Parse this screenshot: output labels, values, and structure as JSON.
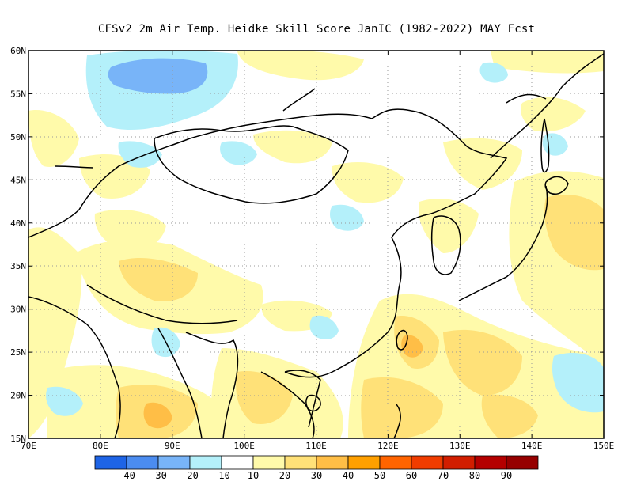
{
  "title": "CFSv2  2m Air Temp. Heidke Skill Score JanIC (1982-2022) MAY Fcst",
  "map": {
    "lon_range": [
      70,
      150
    ],
    "lat_range": [
      15,
      60
    ],
    "lon_ticks": [
      {
        "value": 70,
        "label": "70E"
      },
      {
        "value": 80,
        "label": "80E"
      },
      {
        "value": 90,
        "label": "90E"
      },
      {
        "value": 100,
        "label": "100E"
      },
      {
        "value": 110,
        "label": "110E"
      },
      {
        "value": 120,
        "label": "120E"
      },
      {
        "value": 130,
        "label": "130E"
      },
      {
        "value": 140,
        "label": "140E"
      },
      {
        "value": 150,
        "label": "150E"
      }
    ],
    "lat_ticks": [
      {
        "value": 60,
        "label": "60N"
      },
      {
        "value": 55,
        "label": "55N"
      },
      {
        "value": 50,
        "label": "50N"
      },
      {
        "value": 45,
        "label": "45N"
      },
      {
        "value": 40,
        "label": "40N"
      },
      {
        "value": 35,
        "label": "35N"
      },
      {
        "value": 30,
        "label": "30N"
      },
      {
        "value": 25,
        "label": "25N"
      },
      {
        "value": 20,
        "label": "20N"
      },
      {
        "value": 15,
        "label": "15N"
      }
    ],
    "grid": "dotted"
  },
  "colorbar": {
    "colors": [
      "#1e64e6",
      "#4b8cf0",
      "#78b4f8",
      "#b4f0fa",
      "#ffffff",
      "#fffaaa",
      "#ffe178",
      "#ffbe46",
      "#ffa000",
      "#ff6400",
      "#f03c00",
      "#d21e00",
      "#b40000",
      "#960000"
    ],
    "labels": [
      "-40",
      "-30",
      "-20",
      "-10",
      "10",
      "20",
      "30",
      "40",
      "50",
      "60",
      "70",
      "80",
      "90"
    ]
  }
}
